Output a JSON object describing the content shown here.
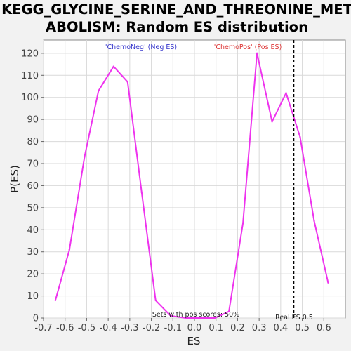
{
  "chart_data": {
    "type": "line",
    "title_lines": [
      "KEGG_GLYCINE_SERINE_AND_THREONINE_MET",
      "ABOLISM: Random ES distribution"
    ],
    "xlabel": "ES",
    "ylabel": "P(ES)",
    "xlim": [
      -0.7,
      0.7
    ],
    "ylim": [
      0,
      126
    ],
    "x_ticks": [
      "-0.7",
      "-0.6",
      "-0.5",
      "-0.4",
      "-0.3",
      "-0.2",
      "-0.1",
      "0.0",
      "0.1",
      "0.2",
      "0.3",
      "0.4",
      "0.5",
      "0.6"
    ],
    "y_ticks": [
      "0",
      "10",
      "20",
      "30",
      "40",
      "50",
      "60",
      "70",
      "80",
      "90",
      "100",
      "110",
      "120"
    ],
    "grid": true,
    "series": [
      {
        "color": "#ee33ee",
        "x": [
          -0.645,
          -0.58,
          -0.51,
          -0.445,
          -0.375,
          -0.31,
          -0.245,
          -0.18,
          -0.11,
          -0.04,
          0.03,
          0.095,
          0.16,
          0.225,
          0.29,
          0.36,
          0.425,
          0.49,
          0.555,
          0.62
        ],
        "y": [
          8,
          31,
          73,
          103,
          114,
          107,
          57,
          8,
          1,
          0,
          0,
          0,
          3,
          43,
          120,
          89,
          102,
          82,
          44,
          16
        ]
      }
    ],
    "annotations": {
      "neg_label": "'ChemoNeg' (Neg ES)",
      "neg_color": "#3333cc",
      "pos_label": "'ChemoPos' (Pos ES)",
      "pos_color": "#dd3333",
      "sets_label": "Sets with pos scores: 50%",
      "real_es_label": "Real ES 0.5",
      "real_es_value": 0.46
    }
  }
}
